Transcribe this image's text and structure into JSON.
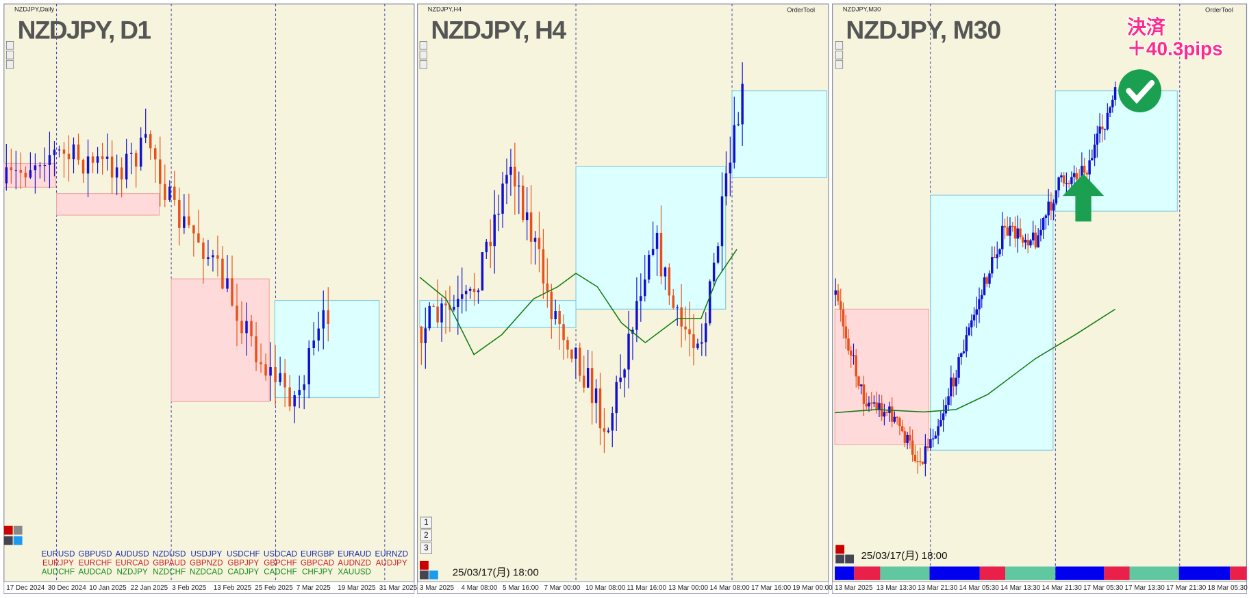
{
  "panels": [
    {
      "header": "NZDJPY,Daily",
      "title": "NZDJPY, D1",
      "dates": [
        "17 Dec 2024",
        "30 Dec 2024",
        "10 Jan 2025",
        "22 Jan 2025",
        "3 Feb 2025",
        "13 Feb 2025",
        "25 Feb 2025",
        "7 Mar 2025",
        "19 Mar 2025",
        "31 Mar 2025"
      ],
      "symbols": [
        [
          "EURUSD",
          "GBPUSD",
          "AUDUSD",
          "NZDUSD",
          "USDJPY",
          "USDCHF",
          "USDCAD",
          "EURGBP",
          "EURAUD",
          "EURNZD"
        ],
        [
          "EURJPY",
          "EURCHF",
          "EURCAD",
          "GBPAUD",
          "GBPNZD",
          "GBPJPY",
          "GBPCHF",
          "GBPCAD",
          "AUDNZD",
          "AUDJPY"
        ],
        [
          "AUDCHF",
          "AUDCAD",
          "NZDJPY",
          "NZDCHF",
          "NZDCAD",
          "CADJPY",
          "CADCHF",
          "CHFJPY",
          "XAUUSD"
        ]
      ]
    },
    {
      "header": "NZDJPY,H4",
      "title": "NZDJPY, H4",
      "order_tool": "OrderTool",
      "timestamp": "25/03/17(月) 18:00",
      "buttons": [
        "1",
        "2",
        "3"
      ],
      "dates": [
        "3 Mar 2025",
        "4 Mar 08:00",
        "5 Mar 16:00",
        "7 Mar 00:00",
        "10 Mar 08:00",
        "11 Mar 16:00",
        "13 Mar 00:00",
        "14 Mar 08:00",
        "17 Mar 16:00",
        "19 Mar 00:00"
      ]
    },
    {
      "header": "NZDJPY,M30",
      "title": "NZDJPY, M30",
      "order_tool": "OrderTool",
      "timestamp": "25/03/17(月) 18:00",
      "dates": [
        "13 Mar 2025",
        "13 Mar 13:30",
        "13 Mar 21:30",
        "14 Mar 05:30",
        "14 Mar 13:30",
        "14 Mar 21:30",
        "17 Mar 05:30",
        "17 Mar 13:30",
        "17 Mar 21:30",
        "18 Mar 05:30"
      ],
      "annotation": [
        "決済",
        "＋40.3pips"
      ]
    }
  ]
}
